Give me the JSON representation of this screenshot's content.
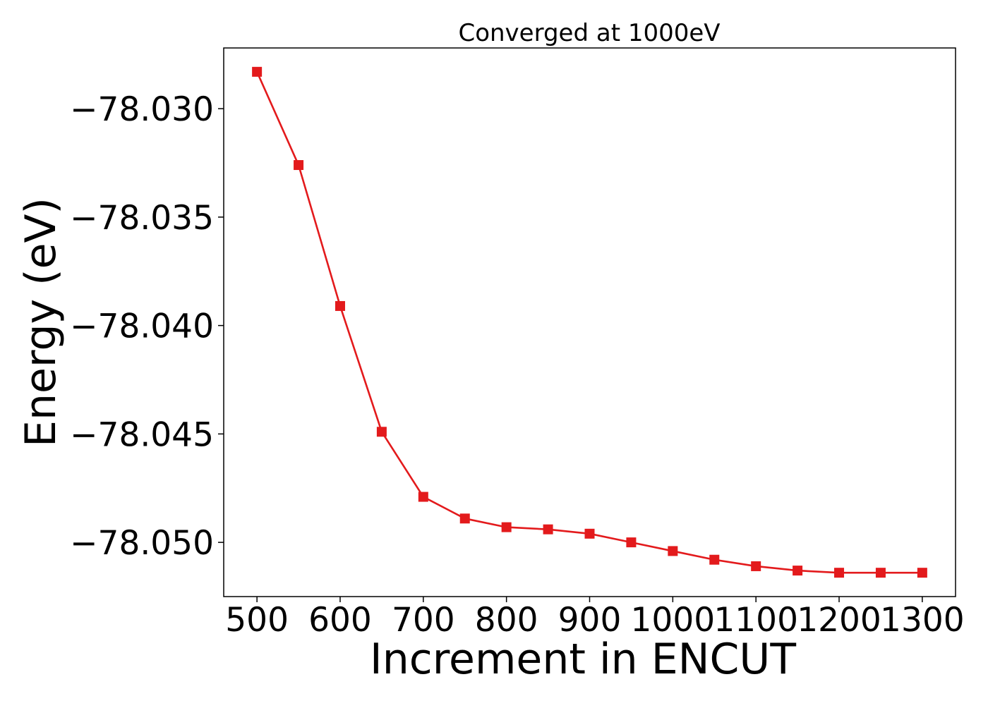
{
  "chart_data": {
    "type": "line",
    "title": "Converged at 1000eV",
    "xlabel": "Increment in ENCUT",
    "ylabel": "Energy (eV)",
    "x": [
      500,
      550,
      600,
      650,
      700,
      750,
      800,
      850,
      900,
      950,
      1000,
      1050,
      1100,
      1150,
      1200,
      1250,
      1300
    ],
    "series": [
      {
        "name": "",
        "color": "#e31a1c",
        "marker": "square",
        "values": [
          -78.0283,
          -78.0326,
          -78.0391,
          -78.0449,
          -78.0479,
          -78.0489,
          -78.0493,
          -78.0494,
          -78.0496,
          -78.05,
          -78.0504,
          -78.0508,
          -78.0511,
          -78.0513,
          -78.0514,
          -78.0514,
          -78.0514
        ]
      }
    ],
    "xticks": [
      500,
      600,
      700,
      800,
      900,
      1000,
      1100,
      1200,
      1300
    ],
    "xtick_labels": [
      "500",
      "600",
      "700",
      "800",
      "900",
      "1000",
      "1100",
      "1200",
      "1300"
    ],
    "yticks": [
      -78.03,
      -78.035,
      -78.04,
      -78.045,
      -78.05
    ],
    "ytick_labels": [
      "−78.030",
      "−78.035",
      "−78.040",
      "−78.045",
      "−78.050"
    ],
    "xlim": [
      460,
      1340
    ],
    "ylim": [
      -78.0525,
      -78.0272
    ],
    "grid": false,
    "legend": "none"
  }
}
